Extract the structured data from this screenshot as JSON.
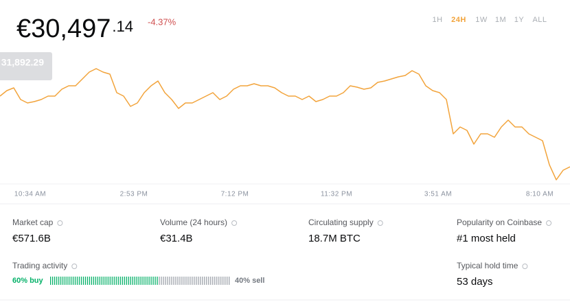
{
  "header": {
    "price": "€30,497",
    "price_cents": ".14",
    "change": "-4.37%",
    "ranges": [
      "1H",
      "24H",
      "1W",
      "1M",
      "1Y",
      "ALL"
    ],
    "active_range": "24H"
  },
  "chart_data": {
    "type": "line",
    "color": "#f2a33a",
    "tooltip": "31,892.29",
    "values": [
      31746,
      31843,
      31892,
      31686,
      31625,
      31649,
      31686,
      31746,
      31746,
      31868,
      31928,
      31928,
      32050,
      32171,
      32232,
      32171,
      32135,
      31807,
      31746,
      31564,
      31625,
      31807,
      31928,
      32013,
      31807,
      31686,
      31528,
      31625,
      31625,
      31686,
      31746,
      31807,
      31686,
      31746,
      31868,
      31928,
      31928,
      31965,
      31928,
      31928,
      31892,
      31807,
      31746,
      31746,
      31686,
      31746,
      31649,
      31686,
      31746,
      31746,
      31807,
      31928,
      31904,
      31868,
      31892,
      31989,
      32013,
      32050,
      32086,
      32110,
      32195,
      32135,
      31928,
      31843,
      31807,
      31686,
      31079,
      31201,
      31140,
      30897,
      31079,
      31079,
      31019,
      31201,
      31322,
      31201,
      31201,
      31079,
      31019,
      30958,
      30533,
      30267,
      30436,
      30497
    ],
    "xlim": [
      0,
      83
    ],
    "ylim": [
      30194,
      32353
    ],
    "xticks": [
      {
        "value": 4.4,
        "label": "10:34 AM"
      },
      {
        "value": 19.5,
        "label": "2:53 PM"
      },
      {
        "value": 34.2,
        "label": "7:12 PM"
      },
      {
        "value": 49,
        "label": "11:32 PM"
      },
      {
        "value": 63.8,
        "label": "3:51 AM"
      },
      {
        "value": 78.6,
        "label": "8:10 AM"
      }
    ]
  },
  "stats": [
    {
      "label": "Market cap",
      "value": "€571.6B"
    },
    {
      "label": "Volume (24 hours)",
      "value": "€31.4B"
    },
    {
      "label": "Circulating supply",
      "value": "18.7M BTC"
    },
    {
      "label": "Popularity on Coinbase",
      "value": "#1 most held"
    }
  ],
  "trading": {
    "label": "Trading activity",
    "buy": 60,
    "sell": 40,
    "buy_label": "60% buy",
    "sell_label": "40% sell"
  },
  "hold": {
    "label": "Typical hold time",
    "value": "53 days"
  }
}
